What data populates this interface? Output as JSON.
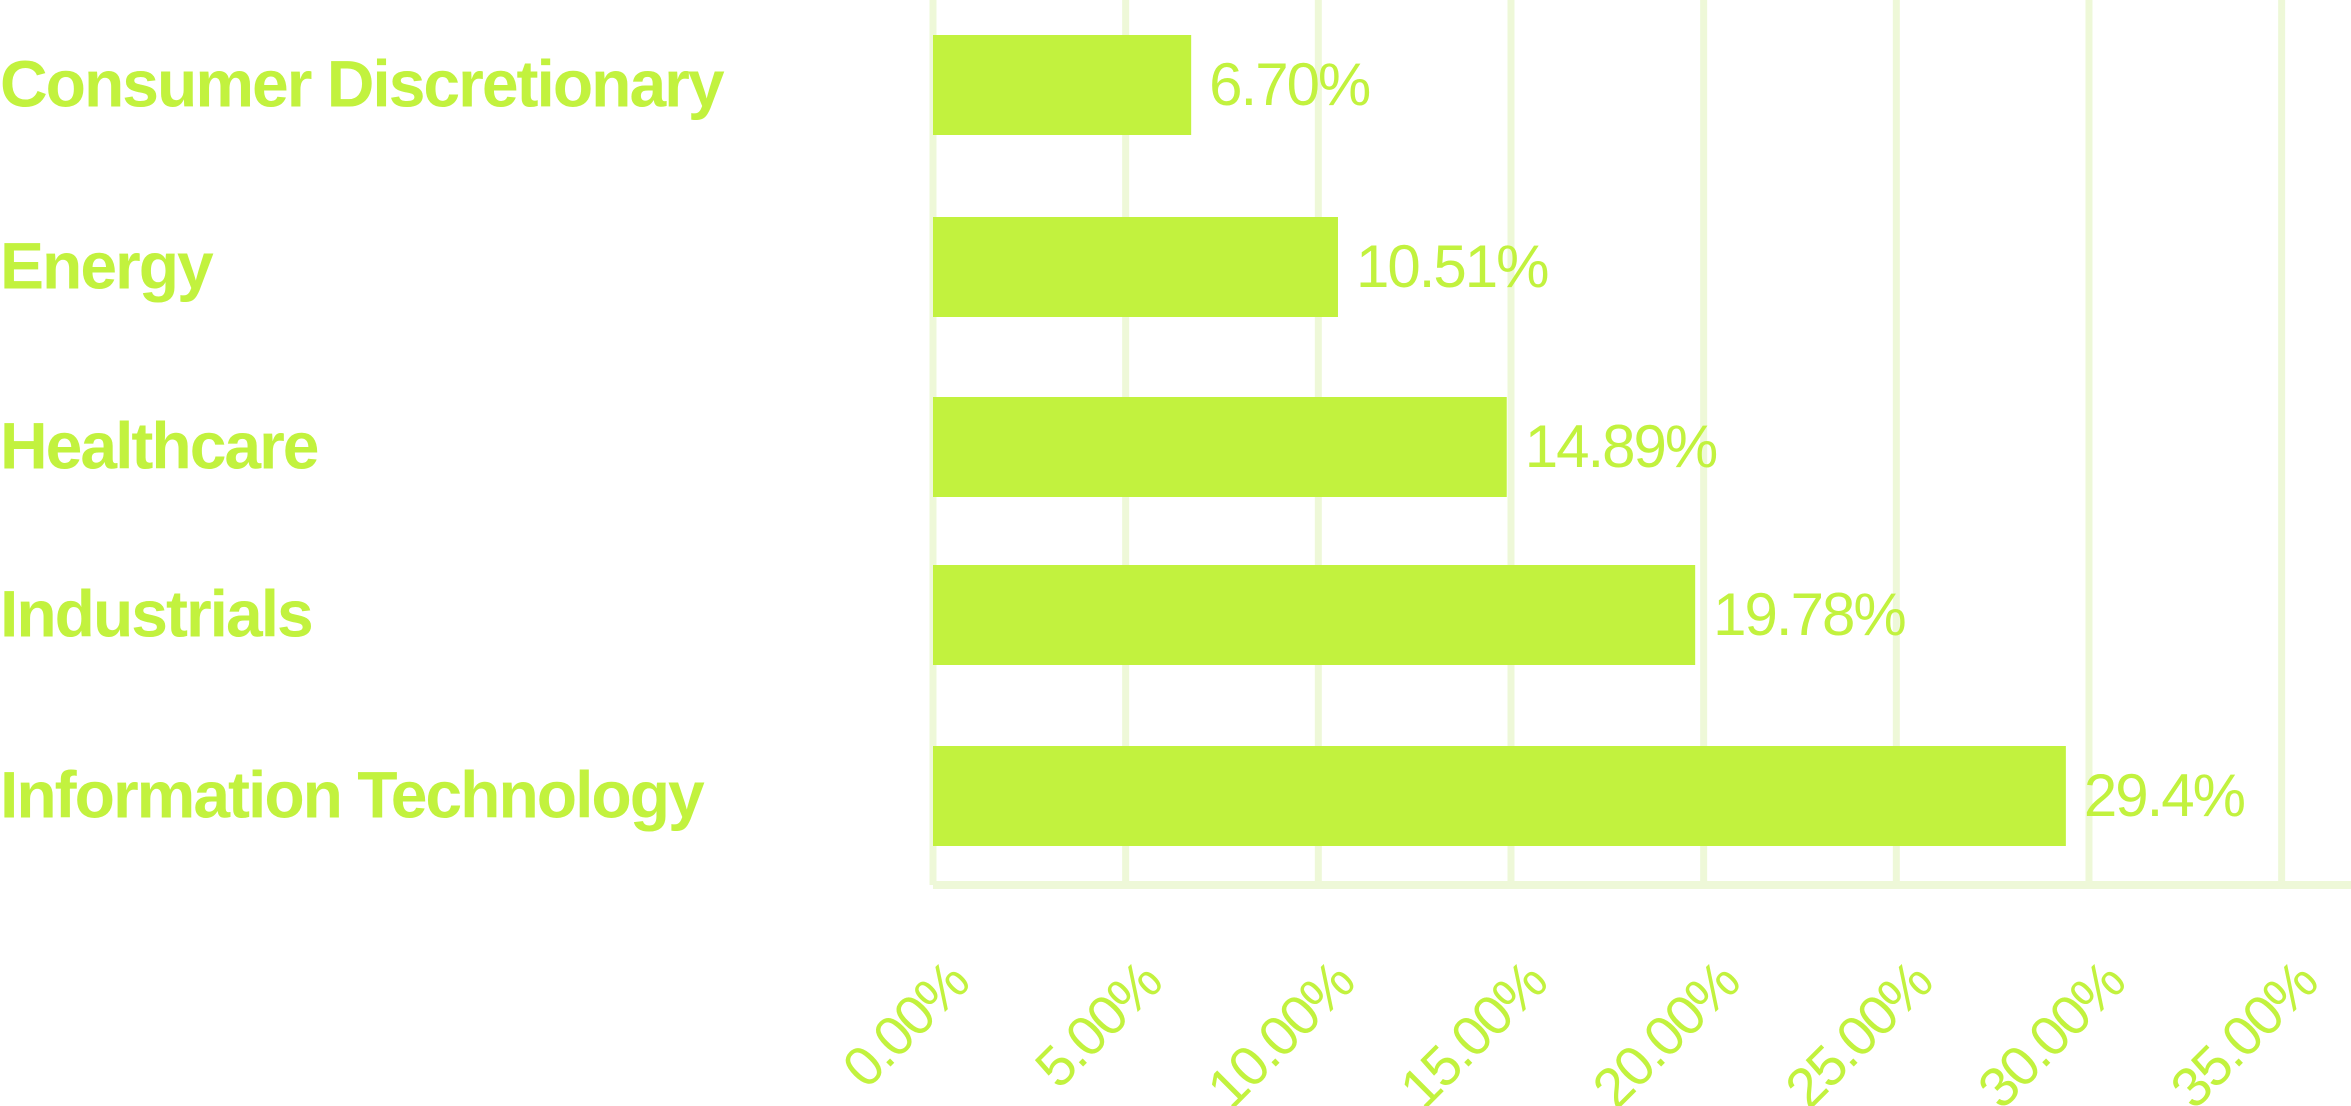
{
  "chart_data": {
    "type": "barh",
    "categories": [
      "Consumer Discretionary",
      "Energy",
      "Healthcare",
      "Industrials",
      "Information Technology"
    ],
    "values": [
      6.7,
      10.51,
      14.89,
      19.78,
      29.4
    ],
    "value_labels": [
      "6.70%",
      "10.51%",
      "14.89%",
      "19.78%",
      "29.4%"
    ],
    "color": "#c2f23e",
    "xlim": [
      0,
      36.8
    ],
    "xticks": [
      {
        "value": 0,
        "label": "0.00%"
      },
      {
        "value": 5,
        "label": "5.00%"
      },
      {
        "value": 10,
        "label": "10.00%"
      },
      {
        "value": 15,
        "label": "15.00%"
      },
      {
        "value": 20,
        "label": "20.00%"
      },
      {
        "value": 25,
        "label": "25.00%"
      },
      {
        "value": 30,
        "label": "30.00%"
      },
      {
        "value": 35,
        "label": "35.00%"
      }
    ],
    "grid": true
  }
}
